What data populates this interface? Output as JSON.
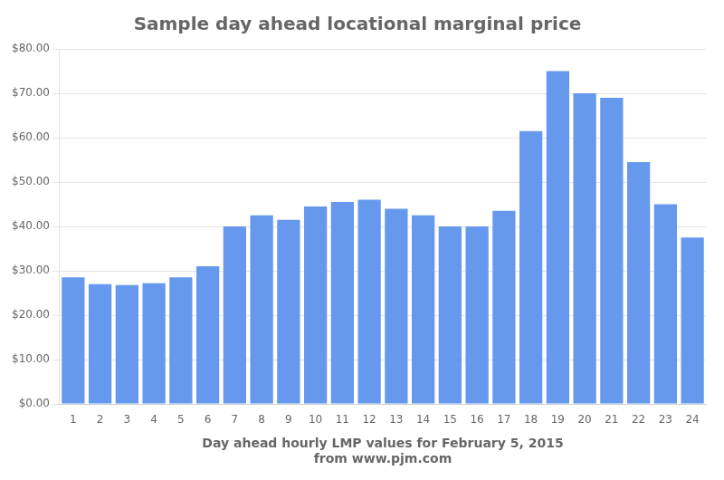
{
  "chart_data": {
    "type": "bar",
    "title": "Sample day ahead locational marginal price",
    "xlabel": [
      "Day ahead hourly LMP values for February 5, 2015",
      "from www.pjm.com"
    ],
    "categories": [
      "1",
      "2",
      "3",
      "4",
      "5",
      "6",
      "7",
      "8",
      "9",
      "10",
      "11",
      "12",
      "13",
      "14",
      "15",
      "16",
      "17",
      "18",
      "19",
      "20",
      "21",
      "22",
      "23",
      "24"
    ],
    "values": [
      28.5,
      27.0,
      26.8,
      27.2,
      28.5,
      31.0,
      40.0,
      42.5,
      41.5,
      44.5,
      45.5,
      46.0,
      44.0,
      42.5,
      40.0,
      40.0,
      43.5,
      61.5,
      75.0,
      70.0,
      69.0,
      54.5,
      45.0,
      37.5
    ],
    "color": "#6699ee",
    "ylim": [
      0,
      80
    ],
    "yticks": [
      {
        "value": 0,
        "label": "$0.00"
      },
      {
        "value": 10,
        "label": "$10.00"
      },
      {
        "value": 20,
        "label": "$20.00"
      },
      {
        "value": 30,
        "label": "$30.00"
      },
      {
        "value": 40,
        "label": "$40.00"
      },
      {
        "value": 50,
        "label": "$50.00"
      },
      {
        "value": 60,
        "label": "$60.00"
      },
      {
        "value": 70,
        "label": "$70.00"
      },
      {
        "value": 80,
        "label": "$80.00"
      }
    ],
    "grid": true
  }
}
